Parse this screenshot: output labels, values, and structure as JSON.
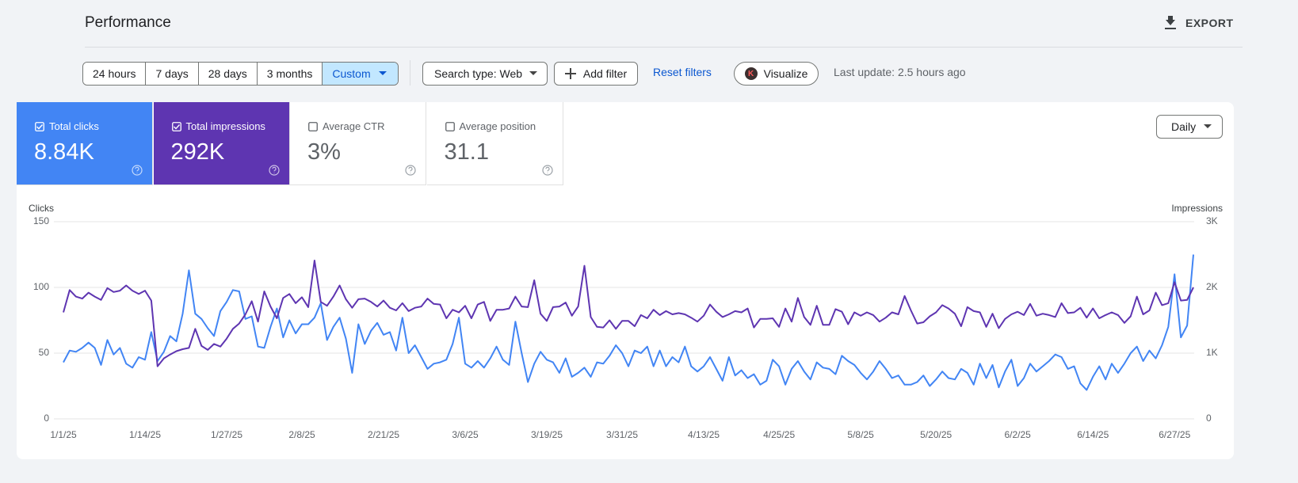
{
  "header": {
    "title": "Performance",
    "export": "EXPORT"
  },
  "filters": {
    "ranges": [
      "24 hours",
      "7 days",
      "28 days",
      "3 months",
      "Custom"
    ],
    "selected_range": 4,
    "search_type": "Search type: Web",
    "add_filter": "Add filter",
    "reset": "Reset filters",
    "visualize_icon": "K",
    "visualize": "Visualize",
    "last_update": "Last update: 2.5 hours ago"
  },
  "metrics": [
    {
      "label": "Total clicks",
      "value": "8.84K",
      "checked": true,
      "color": "#4285f4"
    },
    {
      "label": "Total impressions",
      "value": "292K",
      "checked": true,
      "color": "#5e35b1"
    },
    {
      "label": "Average CTR",
      "value": "3%",
      "checked": false
    },
    {
      "label": "Average position",
      "value": "31.1",
      "checked": false
    }
  ],
  "granularity": "Daily",
  "chart_data": {
    "type": "line",
    "y_label": "Clicks",
    "y2_label": "Impressions",
    "categories": [
      "1/1/25",
      null,
      null,
      null,
      null,
      null,
      null,
      null,
      null,
      null,
      null,
      null,
      null,
      "1/14/25",
      null,
      null,
      null,
      null,
      null,
      null,
      null,
      null,
      null,
      null,
      null,
      null,
      "1/27/25",
      null,
      null,
      null,
      null,
      null,
      null,
      null,
      null,
      null,
      null,
      null,
      "2/8/25",
      null,
      null,
      null,
      null,
      null,
      null,
      null,
      null,
      null,
      null,
      null,
      null,
      "2/21/25",
      null,
      null,
      null,
      null,
      null,
      null,
      null,
      null,
      null,
      null,
      null,
      null,
      "3/6/25",
      null,
      null,
      null,
      null,
      null,
      null,
      null,
      null,
      null,
      null,
      null,
      null,
      "3/19/25",
      null,
      null,
      null,
      null,
      null,
      null,
      null,
      null,
      null,
      null,
      null,
      "3/31/25",
      null,
      null,
      null,
      null,
      null,
      null,
      null,
      null,
      null,
      null,
      null,
      null,
      "4/13/25",
      null,
      null,
      null,
      null,
      null,
      null,
      null,
      null,
      null,
      null,
      null,
      "4/25/25",
      null,
      null,
      null,
      null,
      null,
      null,
      null,
      null,
      null,
      null,
      null,
      null,
      "5/8/25",
      null,
      null,
      null,
      null,
      null,
      null,
      null,
      null,
      null,
      null,
      null,
      "5/20/25",
      null,
      null,
      null,
      null,
      null,
      null,
      null,
      null,
      null,
      null,
      null,
      null,
      "6/2/25",
      null,
      null,
      null,
      null,
      null,
      null,
      null,
      null,
      null,
      null,
      null,
      "6/14/25",
      null,
      null,
      null,
      null,
      null,
      null,
      null,
      null,
      null,
      null,
      null,
      null,
      "6/27/25",
      null,
      null,
      null
    ],
    "series": [
      {
        "name": "Clicks",
        "color": "#4285f4",
        "values": [
          43,
          52,
          51,
          54,
          58,
          54,
          41,
          60,
          49,
          54,
          42,
          39,
          47,
          45,
          66,
          44,
          51,
          63,
          59,
          80,
          113,
          80,
          76,
          69,
          63,
          82,
          89,
          98,
          97,
          76,
          78,
          55,
          54,
          70,
          84,
          62,
          75,
          65,
          72,
          72,
          77,
          88,
          60,
          70,
          77,
          61,
          35,
          72,
          57,
          67,
          73,
          64,
          66,
          52,
          77,
          50,
          56,
          47,
          38,
          42,
          43,
          45,
          57,
          77,
          42,
          39,
          44,
          39,
          46,
          55,
          45,
          41,
          74,
          50,
          28,
          42,
          51,
          45,
          43,
          35,
          46,
          32,
          35,
          39,
          32,
          43,
          42,
          48,
          56,
          50,
          40,
          52,
          50,
          55,
          40,
          52,
          40,
          47,
          43,
          55,
          40,
          36,
          40,
          47,
          38,
          29,
          47,
          33,
          37,
          31,
          34,
          26,
          29,
          45,
          40,
          26,
          38,
          44,
          36,
          30,
          43,
          39,
          38,
          34,
          48,
          44,
          41,
          35,
          30,
          36,
          44,
          38,
          31,
          33,
          26,
          26,
          28,
          33,
          25,
          30,
          36,
          31,
          30,
          38,
          35,
          26,
          42,
          31,
          41,
          24,
          36,
          45,
          25,
          31,
          42,
          36,
          40,
          44,
          49,
          47,
          38,
          40,
          27,
          22,
          32,
          40,
          30,
          42,
          35,
          42,
          50,
          55,
          44,
          52,
          46,
          56,
          70,
          110,
          62,
          71,
          125
        ]
      },
      {
        "name": "Impressions",
        "color": "#5e35b1",
        "axis": "y2",
        "values": [
          1620,
          1960,
          1860,
          1830,
          1920,
          1860,
          1810,
          1990,
          1930,
          1950,
          2030,
          1950,
          1900,
          1950,
          1800,
          800,
          920,
          980,
          1030,
          1060,
          1080,
          1370,
          1110,
          1050,
          1140,
          1100,
          1220,
          1370,
          1450,
          1590,
          1790,
          1480,
          1940,
          1710,
          1530,
          1840,
          1900,
          1760,
          1850,
          1700,
          2410,
          1780,
          1720,
          1860,
          2030,
          1820,
          1690,
          1820,
          1830,
          1780,
          1710,
          1800,
          1690,
          1650,
          1760,
          1640,
          1690,
          1710,
          1830,
          1750,
          1740,
          1530,
          1660,
          1620,
          1720,
          1530,
          1740,
          1780,
          1490,
          1660,
          1660,
          1680,
          1860,
          1710,
          1700,
          2110,
          1600,
          1490,
          1700,
          1710,
          1770,
          1570,
          1710,
          2330,
          1550,
          1400,
          1390,
          1500,
          1370,
          1490,
          1490,
          1410,
          1580,
          1530,
          1660,
          1580,
          1640,
          1590,
          1610,
          1590,
          1540,
          1480,
          1570,
          1740,
          1630,
          1550,
          1590,
          1640,
          1620,
          1680,
          1390,
          1520,
          1520,
          1530,
          1400,
          1680,
          1480,
          1840,
          1550,
          1430,
          1720,
          1430,
          1430,
          1670,
          1630,
          1440,
          1620,
          1570,
          1620,
          1580,
          1480,
          1540,
          1620,
          1590,
          1870,
          1650,
          1450,
          1470,
          1560,
          1620,
          1730,
          1680,
          1600,
          1410,
          1700,
          1640,
          1620,
          1400,
          1600,
          1380,
          1520,
          1590,
          1630,
          1580,
          1750,
          1570,
          1600,
          1580,
          1550,
          1760,
          1610,
          1620,
          1690,
          1540,
          1680,
          1530,
          1580,
          1620,
          1580,
          1460,
          1560,
          1860,
          1590,
          1650,
          1920,
          1730,
          1760,
          2080,
          1800,
          1810,
          2000
        ]
      }
    ],
    "ylim": [
      0,
      150
    ],
    "yticks": [
      0,
      50,
      100,
      150
    ],
    "y2lim": [
      0,
      3000
    ],
    "y2ticks": [
      0,
      {
        "value": 1000,
        "label": "1K"
      },
      {
        "value": 2000,
        "label": "2K"
      },
      {
        "value": 3000,
        "label": "3K"
      }
    ],
    "grid": true
  }
}
